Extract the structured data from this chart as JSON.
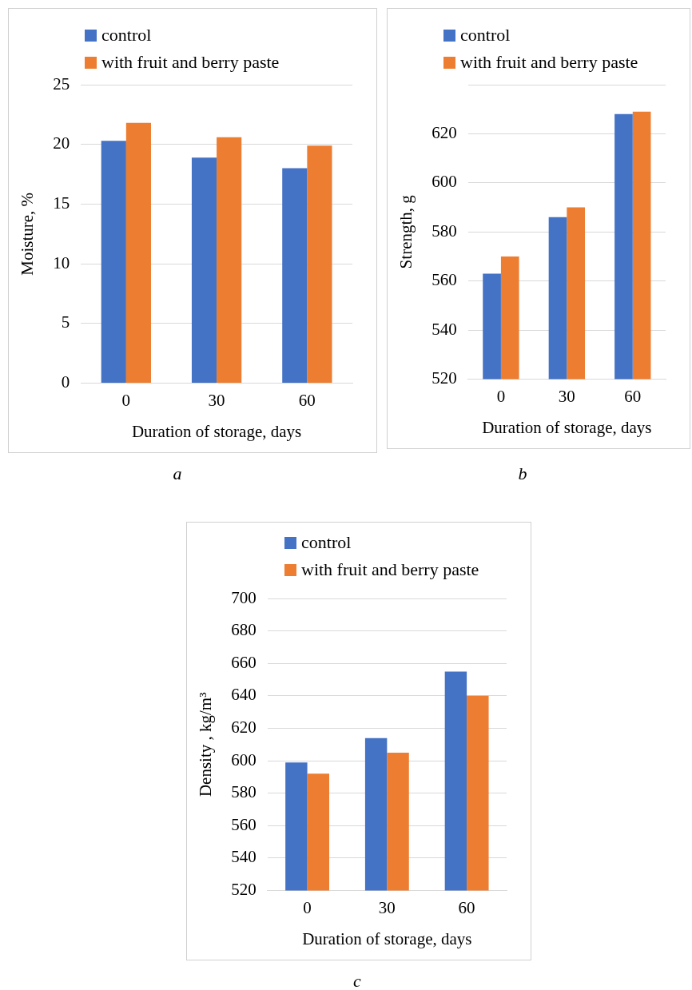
{
  "chart_data": [
    {
      "type": "bar",
      "categories": [
        "0",
        "30",
        "60"
      ],
      "xlabel": "Duration of storage, days",
      "ylabel": "Moisture, %",
      "ylim": [
        0,
        25
      ],
      "yticks": [
        0,
        5,
        10,
        15,
        20,
        25
      ],
      "grid": "y",
      "legend": "top left",
      "annotations": [
        "a"
      ],
      "series": [
        {
          "name": "control",
          "color": "#4472c4",
          "values": [
            20.3,
            18.9,
            18.0
          ]
        },
        {
          "name": "with fruit and berry paste",
          "color": "#ed7d31",
          "values": [
            21.8,
            20.6,
            19.9
          ]
        }
      ]
    },
    {
      "type": "bar",
      "categories": [
        "0",
        "30",
        "60"
      ],
      "xlabel": "Duration of storage, days",
      "ylabel": "Strength, g",
      "ylim": [
        520,
        640
      ],
      "yticks": [
        520,
        540,
        560,
        580,
        600,
        620,
        {
          "value": 640,
          "label": null
        }
      ],
      "grid": "y",
      "legend": "top left",
      "annotations": [
        "b"
      ],
      "series": [
        {
          "name": "control",
          "color": "#4472c4",
          "values": [
            563,
            586,
            628
          ]
        },
        {
          "name": "with fruit and berry paste",
          "color": "#ed7d31",
          "values": [
            570,
            590,
            629
          ]
        }
      ]
    },
    {
      "type": "bar",
      "categories": [
        "0",
        "30",
        "60"
      ],
      "xlabel": "Duration of storage, days",
      "ylabel": "Density , kg/m³",
      "ylim": [
        520,
        700
      ],
      "yticks": [
        520,
        540,
        560,
        580,
        600,
        620,
        640,
        660,
        680,
        700
      ],
      "grid": "y",
      "legend": "top left",
      "annotations": [
        "c"
      ],
      "series": [
        {
          "name": "control",
          "color": "#4472c4",
          "values": [
            599,
            614,
            655
          ]
        },
        {
          "name": "with fruit and berry paste",
          "color": "#ed7d31",
          "values": [
            592,
            605,
            640
          ]
        }
      ]
    }
  ]
}
